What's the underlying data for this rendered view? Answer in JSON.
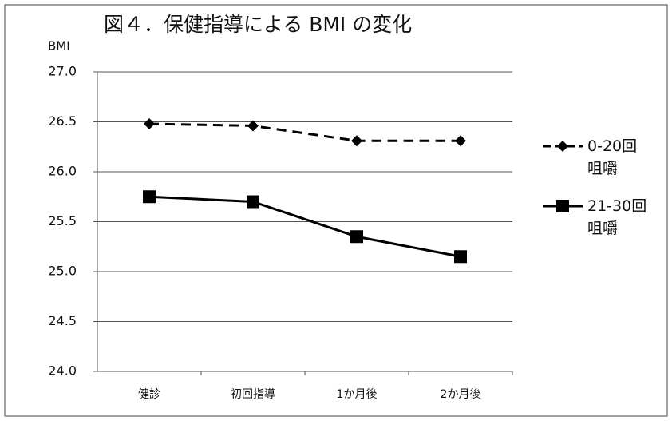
{
  "chart_data": {
    "type": "line",
    "title": "図４．保健指導による BMI の変化",
    "y_label": "BMI",
    "categories": [
      "健診",
      "初回指導",
      "1か月後",
      "2か月後"
    ],
    "series": [
      {
        "name": "0-20回\n咀嚼",
        "color": "#000000",
        "line_style": "dashed",
        "marker": "diamond",
        "values": [
          26.48,
          26.46,
          26.31,
          26.31
        ]
      },
      {
        "name": "21-30回\n咀嚼",
        "color": "#000000",
        "line_style": "solid",
        "marker": "square",
        "values": [
          25.75,
          25.7,
          25.35,
          25.15
        ]
      }
    ],
    "ylim": [
      24,
      27
    ],
    "yticks": [
      {
        "value": 24,
        "label": "24.0"
      },
      24.5,
      {
        "value": 25,
        "label": "25.0"
      },
      25.5,
      {
        "value": 26,
        "label": "26.0"
      },
      26.5,
      {
        "value": 27,
        "label": "27.0"
      }
    ],
    "grid": true,
    "legend": "right"
  }
}
